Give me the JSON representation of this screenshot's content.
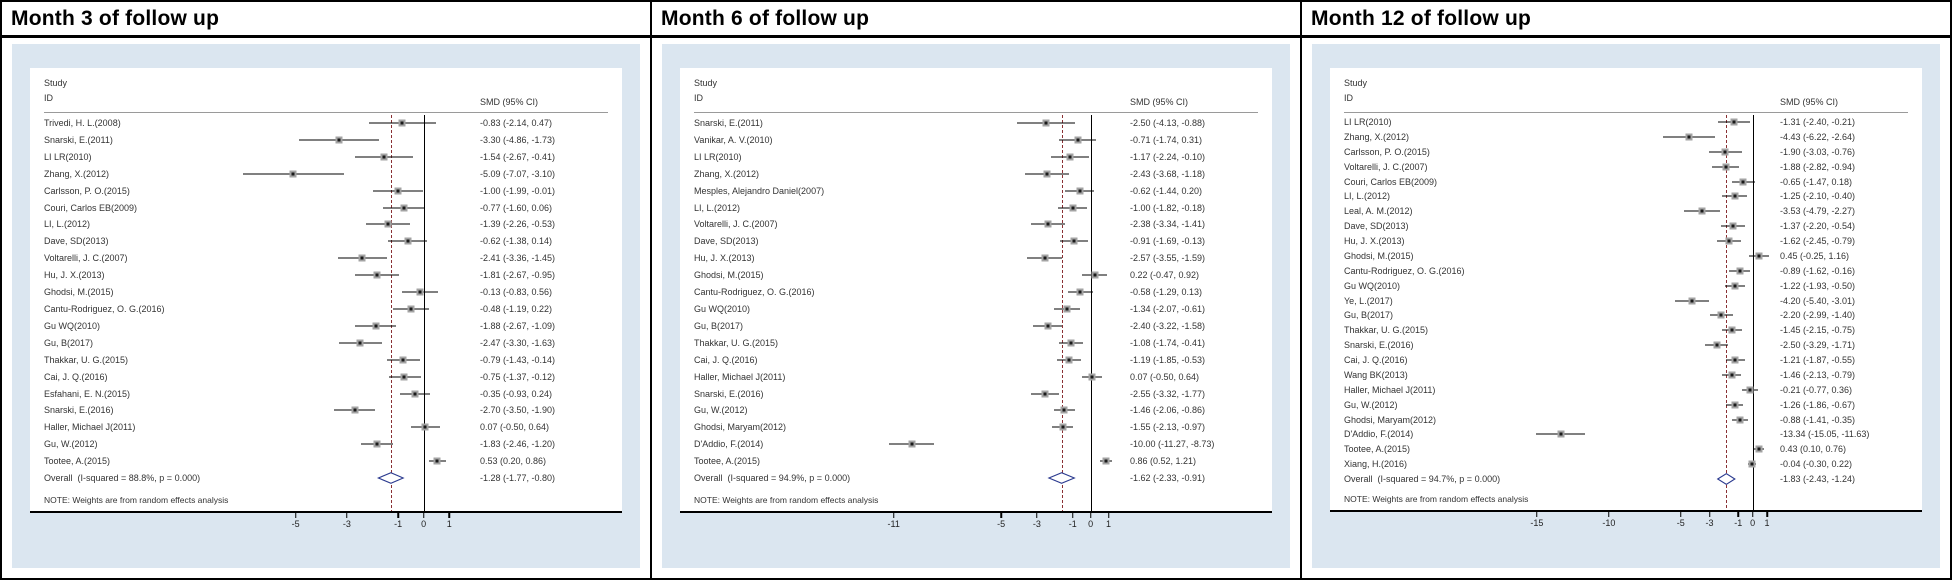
{
  "labels": {
    "study": "Study",
    "id": "ID",
    "smd_ci": "SMD (95% CI)",
    "note": "NOTE: Weights are from random effects analysis"
  },
  "colors": {
    "panel_bg": "#dbe6f0",
    "text": "#333333",
    "ci_line": "#000000",
    "marker_fill": "#a3a3a3",
    "marker_center": "#1a1a1a",
    "zero_line": "#000000",
    "overall_dashed_line": "#8a3033",
    "diamond_stroke": "#2b3a8f",
    "axis_line": "#000000"
  },
  "chart_data": [
    {
      "type": "scatter",
      "subtype": "forest-plot",
      "title": "Month 3 of follow up",
      "effect_measure": "SMD (95% CI)",
      "xaxis": {
        "min": -7.8,
        "max": 2.2,
        "ticks": [
          -5,
          -3,
          -1,
          0,
          1
        ]
      },
      "studies": [
        {
          "name": "Trivedi, H. L.(2008)",
          "est": -0.83,
          "lo": -2.14,
          "hi": 0.47
        },
        {
          "name": "Snarski, E.(2011)",
          "est": -3.3,
          "lo": -4.86,
          "hi": -1.73
        },
        {
          "name": "LI LR(2010)",
          "est": -1.54,
          "lo": -2.67,
          "hi": -0.41
        },
        {
          "name": "Zhang, X.(2012)",
          "est": -5.09,
          "lo": -7.07,
          "hi": -3.1
        },
        {
          "name": "Carlsson, P. O.(2015)",
          "est": -1.0,
          "lo": -1.99,
          "hi": -0.01
        },
        {
          "name": "Couri, Carlos EB(2009)",
          "est": -0.77,
          "lo": -1.6,
          "hi": 0.06
        },
        {
          "name": "LI, L.(2012)",
          "est": -1.39,
          "lo": -2.26,
          "hi": -0.53
        },
        {
          "name": "Dave, SD(2013)",
          "est": -0.62,
          "lo": -1.38,
          "hi": 0.14
        },
        {
          "name": "Voltarelli, J. C.(2007)",
          "est": -2.41,
          "lo": -3.36,
          "hi": -1.45
        },
        {
          "name": "Hu, J. X.(2013)",
          "est": -1.81,
          "lo": -2.67,
          "hi": -0.95
        },
        {
          "name": "Ghodsi, M.(2015)",
          "est": -0.13,
          "lo": -0.83,
          "hi": 0.56
        },
        {
          "name": "Cantu-Rodriguez, O. G.(2016)",
          "est": -0.48,
          "lo": -1.19,
          "hi": 0.22
        },
        {
          "name": "Gu WQ(2010)",
          "est": -1.88,
          "lo": -2.67,
          "hi": -1.09
        },
        {
          "name": "Gu, B(2017)",
          "est": -2.47,
          "lo": -3.3,
          "hi": -1.63
        },
        {
          "name": "Thakkar, U. G.(2015)",
          "est": -0.79,
          "lo": -1.43,
          "hi": -0.14
        },
        {
          "name": "Cai, J. Q.(2016)",
          "est": -0.75,
          "lo": -1.37,
          "hi": -0.12
        },
        {
          "name": "Esfahani, E. N.(2015)",
          "est": -0.35,
          "lo": -0.93,
          "hi": 0.24
        },
        {
          "name": "Snarski, E.(2016)",
          "est": -2.7,
          "lo": -3.5,
          "hi": -1.9
        },
        {
          "name": "Haller, Michael J(2011)",
          "est": 0.07,
          "lo": -0.5,
          "hi": 0.64
        },
        {
          "name": "Gu, W.(2012)",
          "est": -1.83,
          "lo": -2.46,
          "hi": -1.2
        },
        {
          "name": "Tootee, A.(2015)",
          "est": 0.53,
          "lo": 0.2,
          "hi": 0.86
        }
      ],
      "overall": {
        "label": "Overall  (I-squared = 88.8%, p = 0.000)",
        "est": -1.28,
        "lo": -1.77,
        "hi": -0.8
      }
    },
    {
      "type": "scatter",
      "subtype": "forest-plot",
      "title": "Month 6 of follow up",
      "effect_measure": "SMD (95% CI)",
      "xaxis": {
        "min": -12.1,
        "max": 2.2,
        "ticks": [
          -11,
          -5,
          -3,
          -1,
          0,
          1
        ]
      },
      "studies": [
        {
          "name": "Snarski, E.(2011)",
          "est": -2.5,
          "lo": -4.13,
          "hi": -0.88
        },
        {
          "name": "Vanikar, A. V.(2010)",
          "est": -0.71,
          "lo": -1.74,
          "hi": 0.31
        },
        {
          "name": "LI LR(2010)",
          "est": -1.17,
          "lo": -2.24,
          "hi": -0.1
        },
        {
          "name": "Zhang, X.(2012)",
          "est": -2.43,
          "lo": -3.68,
          "hi": -1.18
        },
        {
          "name": "Mesples, Alejandro Daniel(2007)",
          "est": -0.62,
          "lo": -1.44,
          "hi": 0.2
        },
        {
          "name": "LI, L.(2012)",
          "est": -1.0,
          "lo": -1.82,
          "hi": -0.18
        },
        {
          "name": "Voltarelli, J. C.(2007)",
          "est": -2.38,
          "lo": -3.34,
          "hi": -1.41
        },
        {
          "name": "Dave, SD(2013)",
          "est": -0.91,
          "lo": -1.69,
          "hi": -0.13
        },
        {
          "name": "Hu, J. X.(2013)",
          "est": -2.57,
          "lo": -3.55,
          "hi": -1.59
        },
        {
          "name": "Ghodsi, M.(2015)",
          "est": 0.22,
          "lo": -0.47,
          "hi": 0.92
        },
        {
          "name": "Cantu-Rodriguez, O. G.(2016)",
          "est": -0.58,
          "lo": -1.29,
          "hi": 0.13
        },
        {
          "name": "Gu WQ(2010)",
          "est": -1.34,
          "lo": -2.07,
          "hi": -0.61
        },
        {
          "name": "Gu, B(2017)",
          "est": -2.4,
          "lo": -3.22,
          "hi": -1.58
        },
        {
          "name": "Thakkar, U. G.(2015)",
          "est": -1.08,
          "lo": -1.74,
          "hi": -0.41
        },
        {
          "name": "Cai, J. Q.(2016)",
          "est": -1.19,
          "lo": -1.85,
          "hi": -0.53
        },
        {
          "name": "Haller, Michael J(2011)",
          "est": 0.07,
          "lo": -0.5,
          "hi": 0.64
        },
        {
          "name": "Snarski, E.(2016)",
          "est": -2.55,
          "lo": -3.32,
          "hi": -1.77
        },
        {
          "name": "Gu, W.(2012)",
          "est": -1.46,
          "lo": -2.06,
          "hi": -0.86
        },
        {
          "name": "Ghodsi, Maryam(2012)",
          "est": -1.55,
          "lo": -2.13,
          "hi": -0.97
        },
        {
          "name": "D'Addio, F.(2014)",
          "est": -10.0,
          "lo": -11.27,
          "hi": -8.73
        },
        {
          "name": "Tootee, A.(2015)",
          "est": 0.86,
          "lo": 0.52,
          "hi": 1.21
        }
      ],
      "overall": {
        "label": "Overall  (I-squared = 94.9%, p = 0.000)",
        "est": -1.62,
        "lo": -2.33,
        "hi": -0.91
      }
    },
    {
      "type": "scatter",
      "subtype": "forest-plot",
      "title": "Month 12 of follow up",
      "effect_measure": "SMD (95% CI)",
      "xaxis": {
        "min": -15.9,
        "max": 1.9,
        "ticks": [
          -15,
          -10,
          -5,
          -3,
          -1,
          0,
          1
        ]
      },
      "studies": [
        {
          "name": "LI LR(2010)",
          "est": -1.31,
          "lo": -2.4,
          "hi": -0.21
        },
        {
          "name": "Zhang, X.(2012)",
          "est": -4.43,
          "lo": -6.22,
          "hi": -2.64
        },
        {
          "name": "Carlsson, P. O.(2015)",
          "est": -1.9,
          "lo": -3.03,
          "hi": -0.76
        },
        {
          "name": "Voltarelli, J. C.(2007)",
          "est": -1.88,
          "lo": -2.82,
          "hi": -0.94
        },
        {
          "name": "Couri, Carlos EB(2009)",
          "est": -0.65,
          "lo": -1.47,
          "hi": 0.18
        },
        {
          "name": "LI, L.(2012)",
          "est": -1.25,
          "lo": -2.1,
          "hi": -0.4
        },
        {
          "name": "Leal, A. M.(2012)",
          "est": -3.53,
          "lo": -4.79,
          "hi": -2.27
        },
        {
          "name": "Dave, SD(2013)",
          "est": -1.37,
          "lo": -2.2,
          "hi": -0.54
        },
        {
          "name": "Hu, J. X.(2013)",
          "est": -1.62,
          "lo": -2.45,
          "hi": -0.79
        },
        {
          "name": "Ghodsi, M.(2015)",
          "est": 0.45,
          "lo": -0.25,
          "hi": 1.16
        },
        {
          "name": "Cantu-Rodriguez, O. G.(2016)",
          "est": -0.89,
          "lo": -1.62,
          "hi": -0.16
        },
        {
          "name": "Gu WQ(2010)",
          "est": -1.22,
          "lo": -1.93,
          "hi": -0.5
        },
        {
          "name": "Ye, L.(2017)",
          "est": -4.2,
          "lo": -5.4,
          "hi": -3.01
        },
        {
          "name": "Gu, B(2017)",
          "est": -2.2,
          "lo": -2.99,
          "hi": -1.4
        },
        {
          "name": "Thakkar, U. G.(2015)",
          "est": -1.45,
          "lo": -2.15,
          "hi": -0.75
        },
        {
          "name": "Snarski, E.(2016)",
          "est": -2.5,
          "lo": -3.29,
          "hi": -1.71
        },
        {
          "name": "Cai, J. Q.(2016)",
          "est": -1.21,
          "lo": -1.87,
          "hi": -0.55
        },
        {
          "name": "Wang BK(2013)",
          "est": -1.46,
          "lo": -2.13,
          "hi": -0.79
        },
        {
          "name": "Haller, Michael J(2011)",
          "est": -0.21,
          "lo": -0.77,
          "hi": 0.36
        },
        {
          "name": "Gu, W.(2012)",
          "est": -1.26,
          "lo": -1.86,
          "hi": -0.67
        },
        {
          "name": "Ghodsi, Maryam(2012)",
          "est": -0.88,
          "lo": -1.41,
          "hi": -0.35
        },
        {
          "name": "D'Addio, F.(2014)",
          "est": -13.34,
          "lo": -15.05,
          "hi": -11.63
        },
        {
          "name": "Tootee, A.(2015)",
          "est": 0.43,
          "lo": 0.1,
          "hi": 0.76
        },
        {
          "name": "Xiang, H.(2016)",
          "est": -0.04,
          "lo": -0.3,
          "hi": 0.22
        }
      ],
      "overall": {
        "label": "Overall  (I-squared = 94.7%, p = 0.000)",
        "est": -1.83,
        "lo": -2.43,
        "hi": -1.24
      }
    }
  ]
}
